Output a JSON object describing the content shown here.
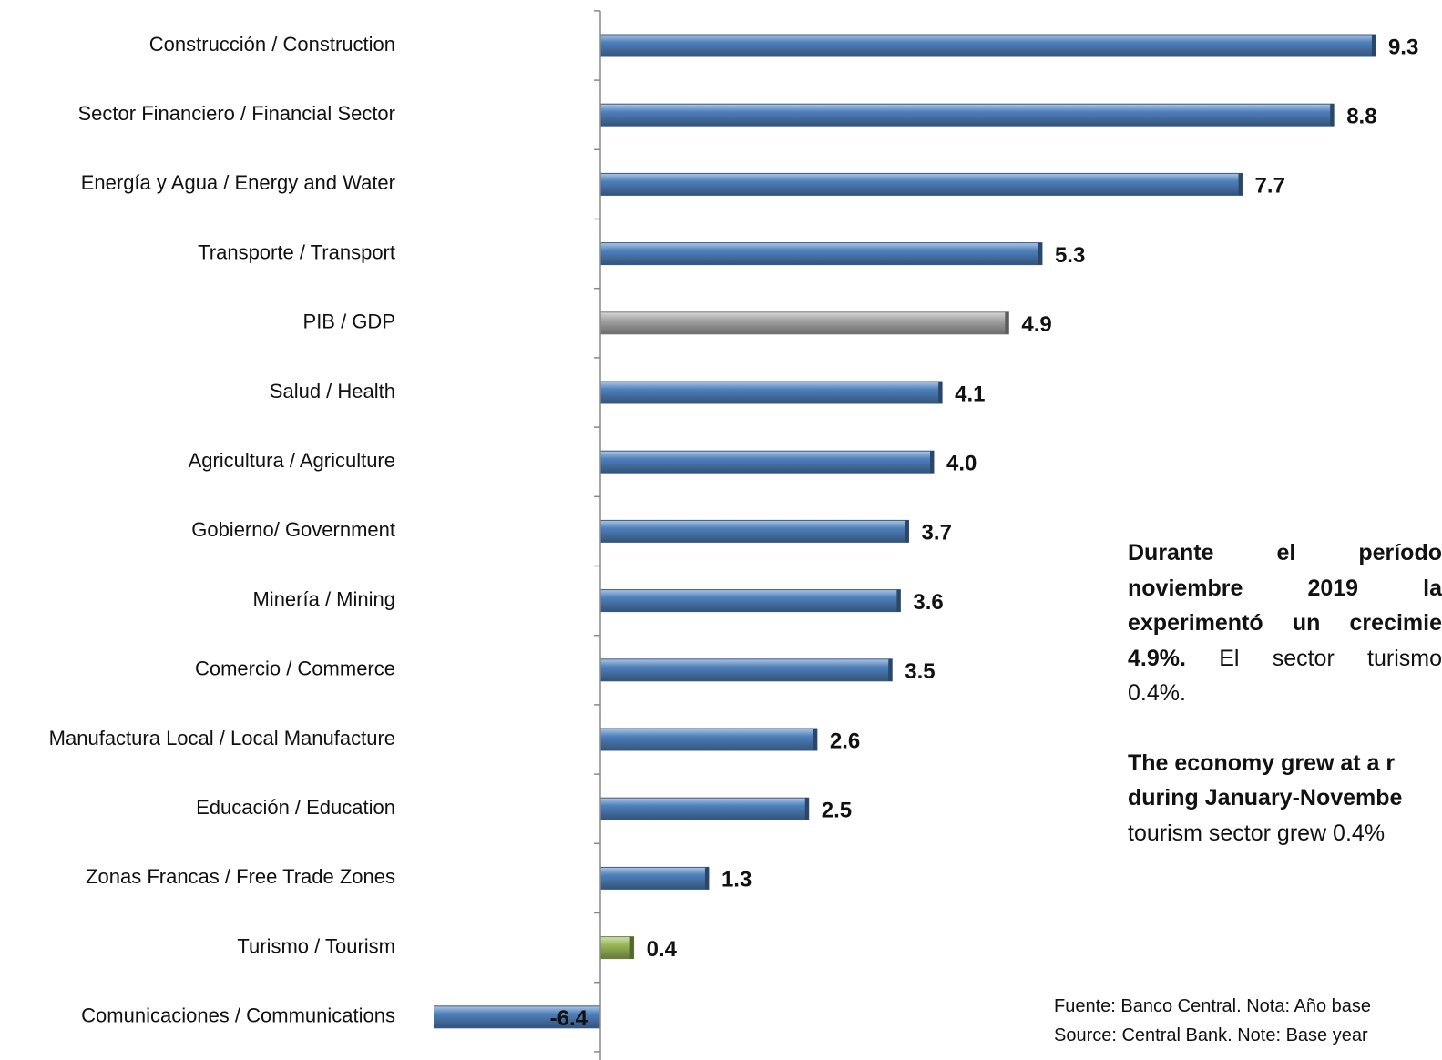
{
  "chart_data": {
    "type": "hbar",
    "categories": [
      "Construcción / Construction",
      "Sector Financiero / Financial Sector",
      "Energía y Agua / Energy and Water",
      "Transporte / Transport",
      "PIB / GDP",
      "Salud / Health",
      "Agricultura / Agriculture",
      "Gobierno/ Government",
      "Minería / Mining",
      "Comercio / Commerce",
      "Manufactura Local / Local Manufacture",
      "Educación / Education",
      "Zonas Francas / Free Trade Zones",
      "Turismo / Tourism",
      "Comunicaciones / Communications"
    ],
    "values": [
      9.3,
      8.8,
      7.7,
      5.3,
      4.9,
      4.1,
      4.0,
      3.7,
      3.6,
      3.5,
      2.6,
      2.5,
      1.3,
      0.4,
      -6.4
    ],
    "value_labels": [
      "9.3",
      "8.8",
      "7.7",
      "5.3",
      "4.9",
      "4.1",
      "4.0",
      "3.7",
      "3.6",
      "3.5",
      "2.6",
      "2.5",
      "1.3",
      "0.4",
      "-6.4"
    ],
    "colors": [
      "#4f81bd",
      "#4f81bd",
      "#4f81bd",
      "#4f81bd",
      "#a6a6a6",
      "#4f81bd",
      "#4f81bd",
      "#4f81bd",
      "#4f81bd",
      "#4f81bd",
      "#4f81bd",
      "#4f81bd",
      "#4f81bd",
      "#9bbb59",
      "#4f81bd"
    ],
    "xlim": [
      -2,
      10
    ]
  },
  "annotation": {
    "es": [
      [
        {
          "text": "Durante el período",
          "bold": true
        }
      ],
      [
        {
          "text": "noviembre 2019 la",
          "bold": true
        }
      ],
      [
        {
          "text": "experimentó un crecimie",
          "bold": true
        }
      ],
      [
        {
          "text": "4.9%.",
          "bold": true
        },
        {
          "text": " El sector turismo",
          "bold": false
        }
      ],
      [
        {
          "text": "0.4%.",
          "bold": false
        }
      ]
    ],
    "en": [
      [
        {
          "text": "The economy grew at a r",
          "bold": true
        }
      ],
      [
        {
          "text": "during January-Novembe",
          "bold": true
        }
      ],
      [
        {
          "text": "tourism sector grew 0.4%",
          "bold": false
        }
      ]
    ]
  },
  "source": [
    "Fuente: Banco Central. Nota: Año base",
    "Source: Central  Bank. Note: Base  year"
  ]
}
